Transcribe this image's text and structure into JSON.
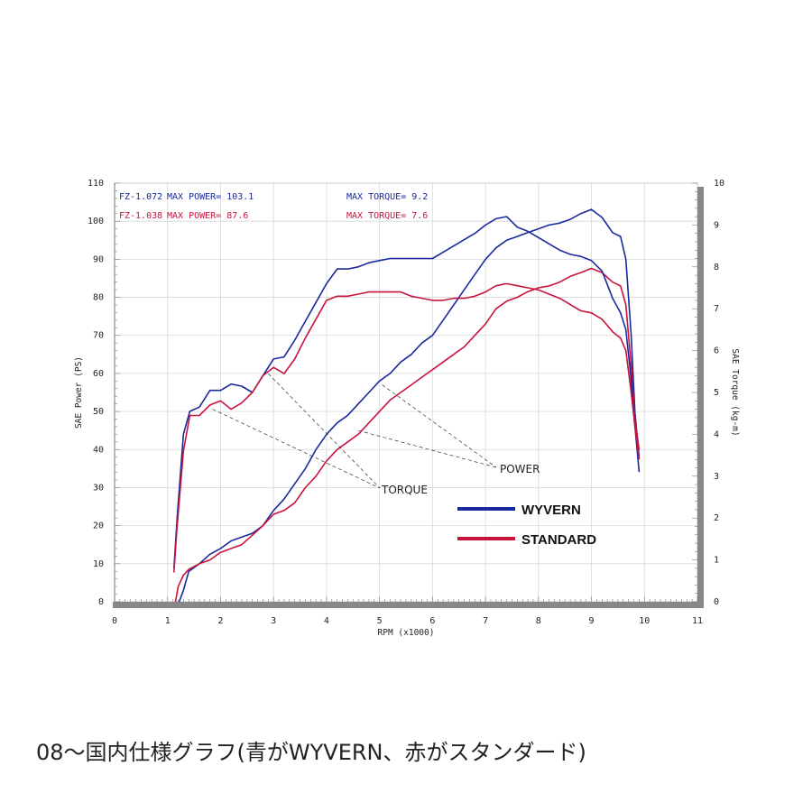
{
  "caption": "08～国内仕様グラフ(青がWYVERN、赤がスタンダード)",
  "colors": {
    "wyvern": "#1a2a9c",
    "standard": "#c8143c",
    "axis": "#888888",
    "grid": "#d8d8d8"
  },
  "chart_data": {
    "type": "line",
    "xlabel": "RPM (x1000)",
    "ylabel_left": "SAE Power (PS)",
    "ylabel_right": "SAE Torque (kg-m)",
    "xlim": [
      0,
      11
    ],
    "ylim_left": [
      0,
      110
    ],
    "ylim_right": [
      0,
      10
    ],
    "x_ticks": [
      "0",
      "1",
      "2",
      "3",
      "4",
      "5",
      "6",
      "7",
      "8",
      "9",
      "10",
      "11"
    ],
    "y_left_ticks": [
      "0",
      "10",
      "20",
      "30",
      "40",
      "50",
      "60",
      "70",
      "80",
      "90",
      "100",
      "110"
    ],
    "y_right_ticks": [
      "0",
      "1",
      "2",
      "3",
      "4",
      "5",
      "6",
      "7",
      "8",
      "9",
      "10"
    ],
    "grid": true,
    "info": [
      {
        "model": "FZ-1.072",
        "power": "MAX POWER= 103.1",
        "torque": "MAX TORQUE= 9.2",
        "series": "wyvern"
      },
      {
        "model": "FZ-1.038",
        "power": "MAX POWER= 87.6",
        "torque": "MAX TORQUE= 7.6",
        "series": "standard"
      }
    ],
    "legend": [
      {
        "name": "WYVERN",
        "series": "wyvern"
      },
      {
        "name": "STANDARD",
        "series": "standard"
      }
    ],
    "annotations": {
      "power": "POWER",
      "torque": "TORQUE"
    },
    "series": [
      {
        "id": "wyvern_power",
        "series": "wyvern",
        "axis": "left",
        "points": [
          [
            1.22,
            0
          ],
          [
            1.3,
            3
          ],
          [
            1.4,
            8
          ],
          [
            1.6,
            10
          ],
          [
            1.8,
            12.5
          ],
          [
            2.0,
            14
          ],
          [
            2.2,
            16
          ],
          [
            2.4,
            17
          ],
          [
            2.6,
            18
          ],
          [
            2.8,
            20
          ],
          [
            3.0,
            24
          ],
          [
            3.2,
            27
          ],
          [
            3.4,
            31
          ],
          [
            3.6,
            35
          ],
          [
            3.8,
            40
          ],
          [
            4.0,
            44
          ],
          [
            4.2,
            47
          ],
          [
            4.4,
            49
          ],
          [
            4.6,
            52
          ],
          [
            4.8,
            55
          ],
          [
            5.0,
            58
          ],
          [
            5.2,
            60
          ],
          [
            5.4,
            63
          ],
          [
            5.6,
            65
          ],
          [
            5.8,
            68
          ],
          [
            6.0,
            70
          ],
          [
            6.2,
            74
          ],
          [
            6.4,
            78
          ],
          [
            6.6,
            82
          ],
          [
            6.8,
            86
          ],
          [
            7.0,
            90
          ],
          [
            7.2,
            93
          ],
          [
            7.4,
            95
          ],
          [
            7.6,
            96
          ],
          [
            7.8,
            97
          ],
          [
            8.0,
            98
          ],
          [
            8.2,
            99
          ],
          [
            8.4,
            99.5
          ],
          [
            8.6,
            100.5
          ],
          [
            8.8,
            102
          ],
          [
            9.0,
            103.1
          ],
          [
            9.2,
            101
          ],
          [
            9.4,
            97
          ],
          [
            9.55,
            96
          ],
          [
            9.65,
            90
          ],
          [
            9.75,
            70
          ],
          [
            9.82,
            50
          ],
          [
            9.9,
            38
          ]
        ]
      },
      {
        "id": "standard_power",
        "series": "standard",
        "axis": "left",
        "points": [
          [
            1.15,
            0
          ],
          [
            1.2,
            4
          ],
          [
            1.3,
            7
          ],
          [
            1.4,
            8.5
          ],
          [
            1.6,
            10
          ],
          [
            1.8,
            11
          ],
          [
            2.0,
            13
          ],
          [
            2.2,
            14
          ],
          [
            2.4,
            15
          ],
          [
            2.6,
            17.5
          ],
          [
            2.8,
            20
          ],
          [
            3.0,
            23
          ],
          [
            3.2,
            24
          ],
          [
            3.4,
            26
          ],
          [
            3.6,
            30
          ],
          [
            3.8,
            33
          ],
          [
            4.0,
            37
          ],
          [
            4.2,
            40
          ],
          [
            4.4,
            42
          ],
          [
            4.6,
            44
          ],
          [
            4.8,
            47
          ],
          [
            5.0,
            50
          ],
          [
            5.2,
            53
          ],
          [
            5.4,
            55
          ],
          [
            5.6,
            57
          ],
          [
            5.8,
            59
          ],
          [
            6.0,
            61
          ],
          [
            6.2,
            63
          ],
          [
            6.4,
            65
          ],
          [
            6.6,
            67
          ],
          [
            6.8,
            70
          ],
          [
            7.0,
            73
          ],
          [
            7.2,
            77
          ],
          [
            7.4,
            79
          ],
          [
            7.6,
            80
          ],
          [
            7.8,
            81.5
          ],
          [
            8.0,
            82.5
          ],
          [
            8.2,
            83
          ],
          [
            8.4,
            84
          ],
          [
            8.6,
            85.5
          ],
          [
            8.8,
            86.5
          ],
          [
            9.0,
            87.6
          ],
          [
            9.2,
            86.5
          ],
          [
            9.4,
            84
          ],
          [
            9.55,
            83
          ],
          [
            9.65,
            78
          ],
          [
            9.75,
            62
          ],
          [
            9.82,
            48
          ],
          [
            9.9,
            40
          ]
        ]
      },
      {
        "id": "wyvern_torque",
        "series": "wyvern",
        "axis": "right",
        "points": [
          [
            1.12,
            0.8
          ],
          [
            1.18,
            2
          ],
          [
            1.3,
            4
          ],
          [
            1.42,
            4.55
          ],
          [
            1.6,
            4.65
          ],
          [
            1.8,
            5.05
          ],
          [
            2.0,
            5.05
          ],
          [
            2.2,
            5.2
          ],
          [
            2.4,
            5.15
          ],
          [
            2.6,
            5.0
          ],
          [
            2.8,
            5.4
          ],
          [
            3.0,
            5.8
          ],
          [
            3.2,
            5.85
          ],
          [
            3.4,
            6.25
          ],
          [
            3.6,
            6.7
          ],
          [
            3.8,
            7.15
          ],
          [
            4.0,
            7.6
          ],
          [
            4.2,
            7.95
          ],
          [
            4.4,
            7.95
          ],
          [
            4.6,
            8.0
          ],
          [
            4.8,
            8.1
          ],
          [
            5.0,
            8.15
          ],
          [
            5.2,
            8.2
          ],
          [
            5.4,
            8.2
          ],
          [
            5.6,
            8.2
          ],
          [
            5.8,
            8.2
          ],
          [
            6.0,
            8.2
          ],
          [
            6.2,
            8.35
          ],
          [
            6.4,
            8.5
          ],
          [
            6.6,
            8.65
          ],
          [
            6.8,
            8.8
          ],
          [
            7.0,
            9.0
          ],
          [
            7.2,
            9.15
          ],
          [
            7.4,
            9.2
          ],
          [
            7.6,
            8.95
          ],
          [
            7.8,
            8.85
          ],
          [
            8.0,
            8.7
          ],
          [
            8.2,
            8.55
          ],
          [
            8.4,
            8.4
          ],
          [
            8.6,
            8.3
          ],
          [
            8.8,
            8.25
          ],
          [
            9.0,
            8.15
          ],
          [
            9.2,
            7.9
          ],
          [
            9.4,
            7.25
          ],
          [
            9.55,
            6.9
          ],
          [
            9.65,
            6.5
          ],
          [
            9.75,
            5.3
          ],
          [
            9.82,
            4.2
          ],
          [
            9.9,
            3.1
          ]
        ]
      },
      {
        "id": "standard_torque",
        "series": "standard",
        "axis": "right",
        "points": [
          [
            1.12,
            0.7
          ],
          [
            1.18,
            1.8
          ],
          [
            1.3,
            3.6
          ],
          [
            1.42,
            4.45
          ],
          [
            1.6,
            4.45
          ],
          [
            1.8,
            4.7
          ],
          [
            2.0,
            4.8
          ],
          [
            2.2,
            4.6
          ],
          [
            2.4,
            4.75
          ],
          [
            2.6,
            5.0
          ],
          [
            2.8,
            5.4
          ],
          [
            3.0,
            5.6
          ],
          [
            3.2,
            5.45
          ],
          [
            3.4,
            5.8
          ],
          [
            3.6,
            6.3
          ],
          [
            3.8,
            6.75
          ],
          [
            4.0,
            7.2
          ],
          [
            4.2,
            7.3
          ],
          [
            4.4,
            7.3
          ],
          [
            4.6,
            7.35
          ],
          [
            4.8,
            7.4
          ],
          [
            5.0,
            7.4
          ],
          [
            5.2,
            7.4
          ],
          [
            5.4,
            7.4
          ],
          [
            5.6,
            7.3
          ],
          [
            5.8,
            7.25
          ],
          [
            6.0,
            7.2
          ],
          [
            6.2,
            7.2
          ],
          [
            6.4,
            7.25
          ],
          [
            6.6,
            7.25
          ],
          [
            6.8,
            7.3
          ],
          [
            7.0,
            7.4
          ],
          [
            7.2,
            7.55
          ],
          [
            7.4,
            7.6
          ],
          [
            7.6,
            7.55
          ],
          [
            7.8,
            7.5
          ],
          [
            8.0,
            7.45
          ],
          [
            8.2,
            7.35
          ],
          [
            8.4,
            7.25
          ],
          [
            8.6,
            7.1
          ],
          [
            8.8,
            6.95
          ],
          [
            9.0,
            6.9
          ],
          [
            9.2,
            6.75
          ],
          [
            9.4,
            6.45
          ],
          [
            9.55,
            6.3
          ],
          [
            9.65,
            6.0
          ],
          [
            9.75,
            5.0
          ],
          [
            9.82,
            4.2
          ],
          [
            9.9,
            3.4
          ]
        ]
      }
    ]
  }
}
